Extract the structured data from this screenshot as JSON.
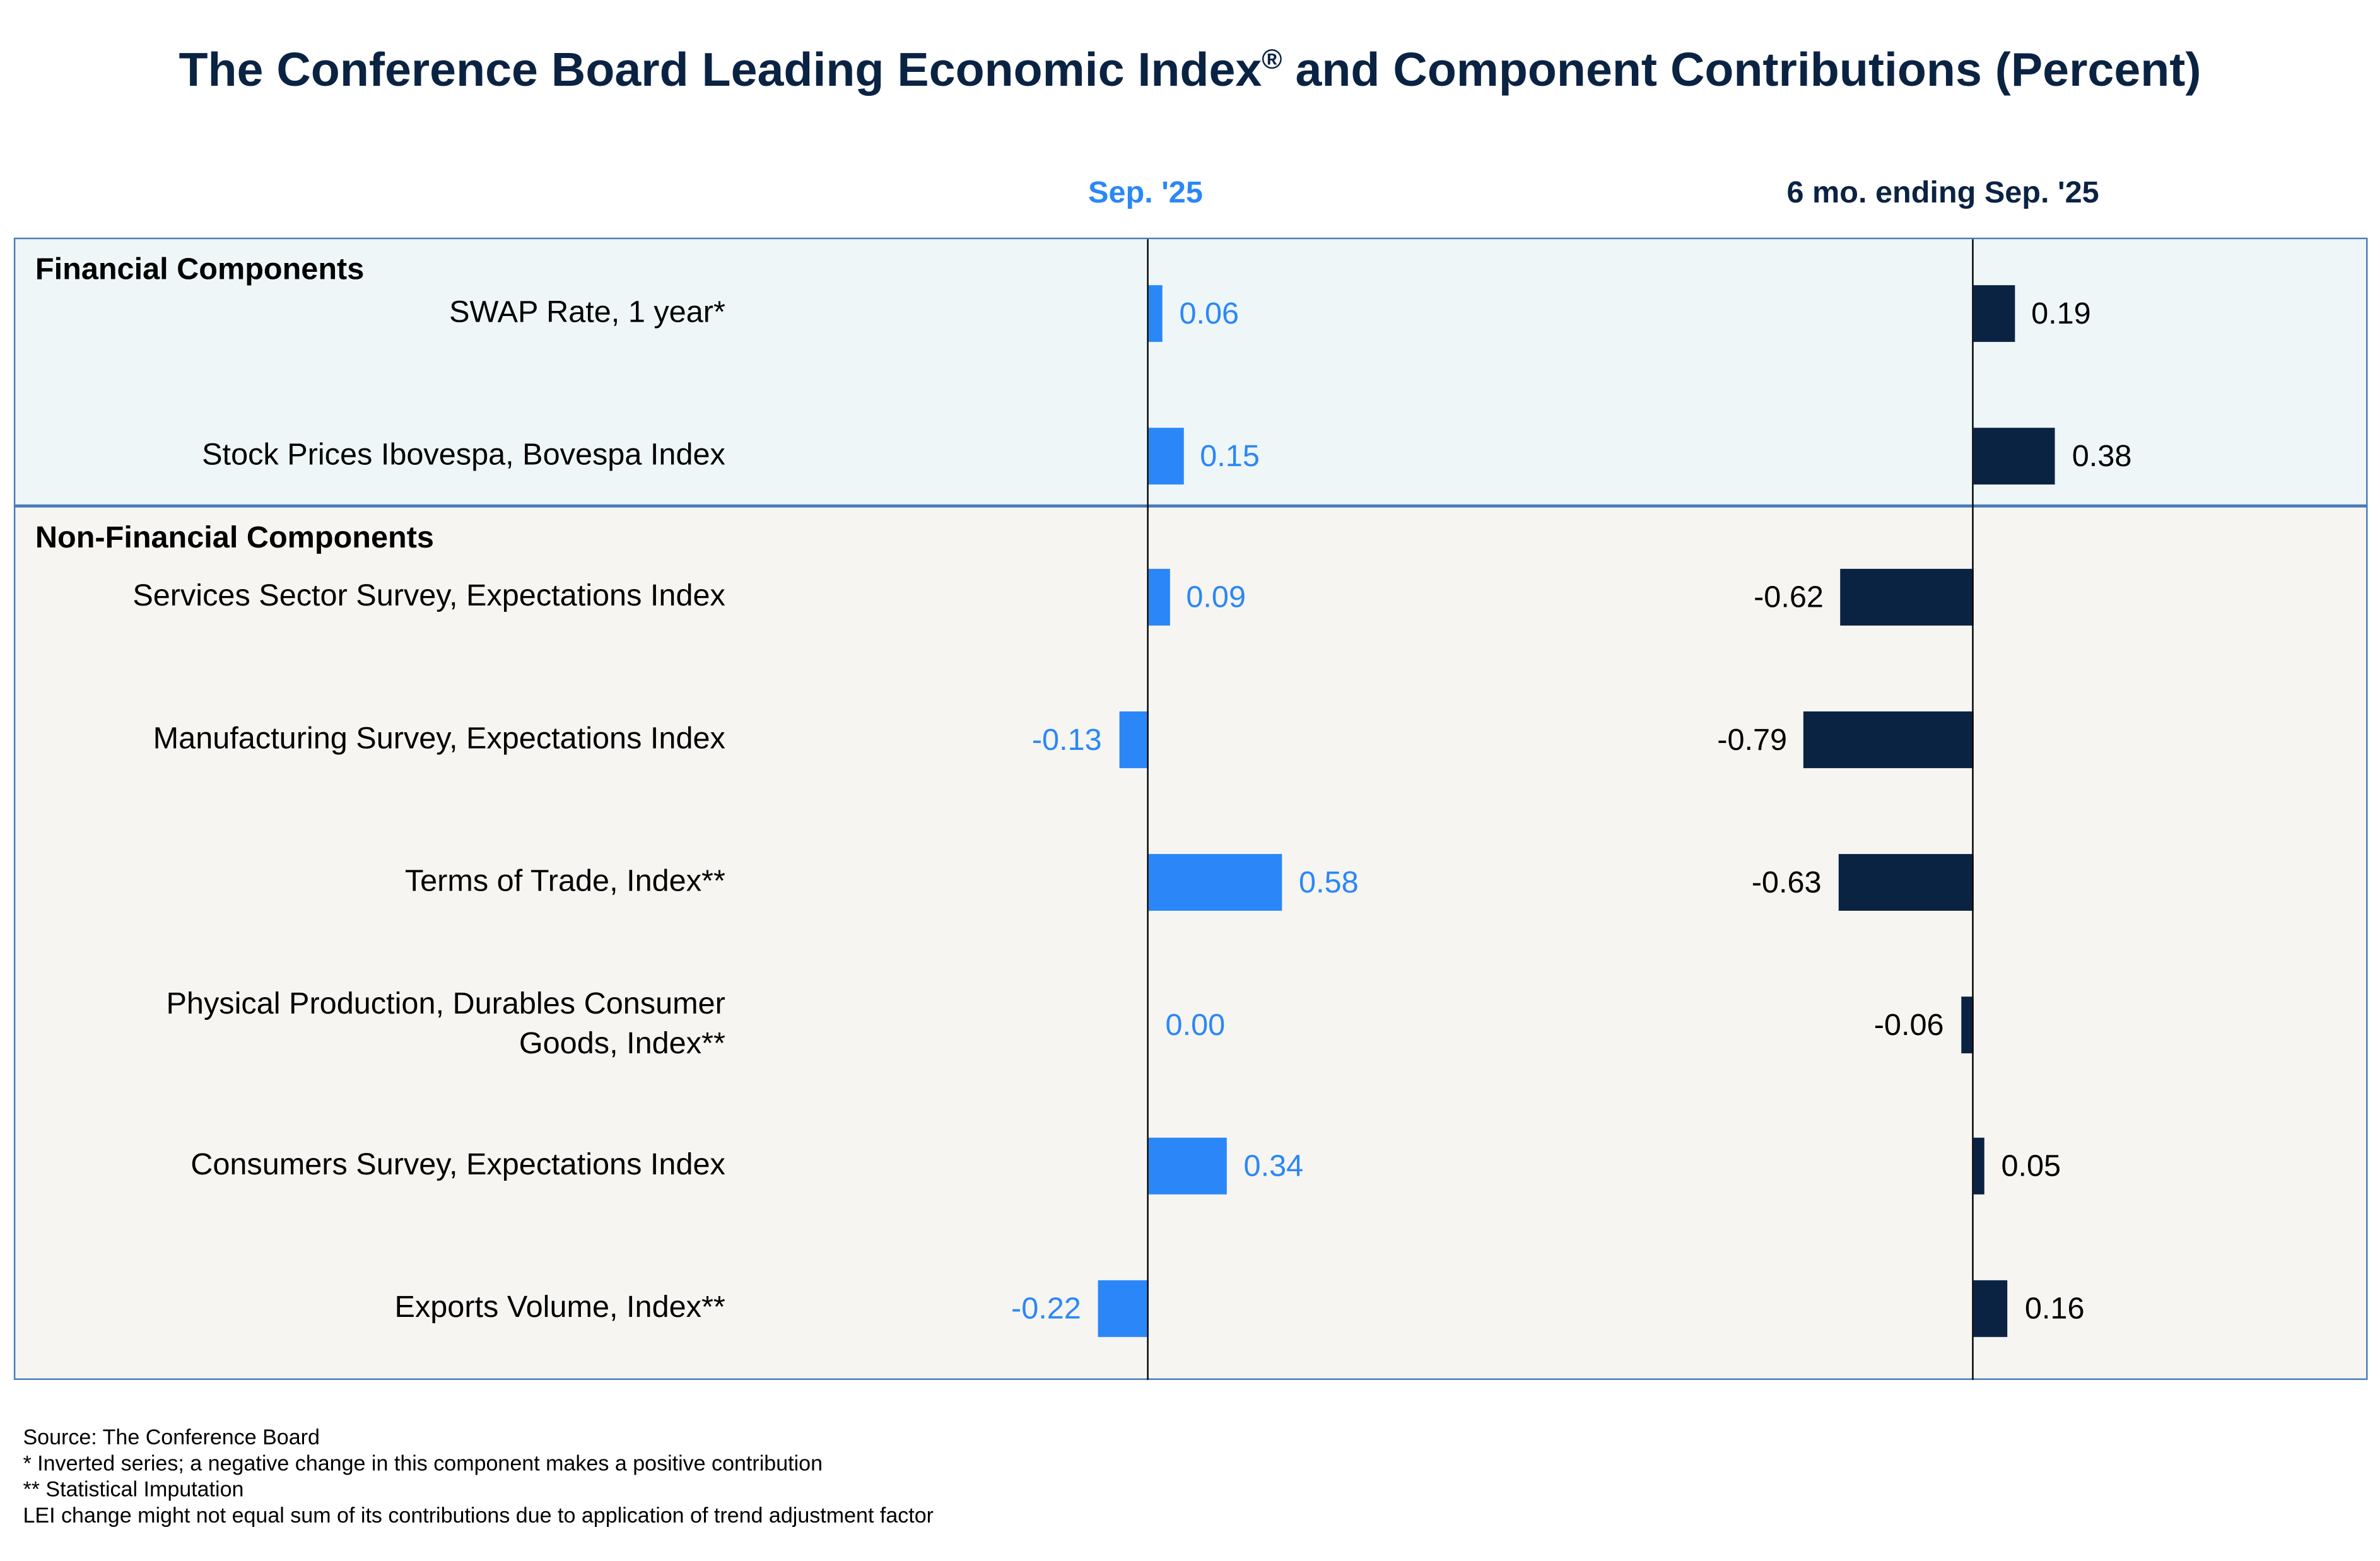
{
  "title": "The Conference Board Leading Economic Index",
  "title_mark": "®",
  "title_rest": " and Component Contributions (Percent)",
  "chart_data": {
    "type": "bar",
    "orientation": "horizontal",
    "title": "The Conference Board Leading Economic Index® and Component Contributions (Percent)",
    "groups": [
      {
        "name": "Financial Components",
        "categories": [
          "SWAP Rate, 1 year*",
          "Stock Prices Ibovespa, Bovespa Index"
        ]
      },
      {
        "name": "Non-Financial Components",
        "categories": [
          "Services Sector Survey, Expectations Index",
          "Manufacturing Survey, Expectations Index",
          "Terms of Trade, Index**",
          "Physical Production, Durables Consumer Goods, Index**",
          "Consumers Survey, Expectations Index",
          "Exports Volume, Index**"
        ]
      }
    ],
    "categories": [
      "SWAP Rate, 1 year*",
      "Stock Prices Ibovespa, Bovespa Index",
      "Services Sector Survey, Expectations Index",
      "Manufacturing Survey, Expectations Index",
      "Terms of Trade, Index**",
      "Physical Production, Durables Consumer Goods, Index**",
      "Consumers Survey, Expectations Index",
      "Exports Volume, Index**"
    ],
    "series": [
      {
        "name": "Sep. '25",
        "color": "#2b87f7",
        "values": [
          0.06,
          0.15,
          0.09,
          -0.13,
          0.58,
          0.0,
          0.34,
          -0.22
        ],
        "labels": [
          "0.06",
          "0.15",
          "0.09",
          "-0.13",
          "0.58",
          "0.00",
          "0.34",
          "-0.22"
        ]
      },
      {
        "name": "6 mo. ending Sep. '25",
        "color": "#0b2343",
        "values": [
          0.19,
          0.38,
          -0.62,
          -0.79,
          -0.63,
          -0.06,
          0.05,
          0.16
        ],
        "labels": [
          "0.19",
          "0.38",
          "-0.62",
          "-0.79",
          "-0.63",
          "-0.06",
          "0.05",
          "0.16"
        ]
      }
    ]
  },
  "footnotes": [
    "Source: The Conference Board",
    "*  Inverted series; a negative change in this component makes a positive contribution",
    "** Statistical Imputation",
    "LEI change might not equal sum of its contributions due to application of trend adjustment factor"
  ]
}
